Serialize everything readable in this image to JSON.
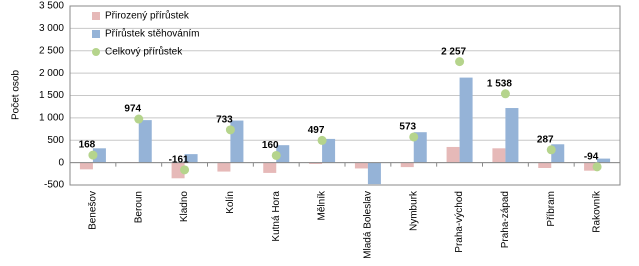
{
  "chart_data": {
    "type": "bar",
    "y_label": "Počet osob",
    "categories": [
      "Benešov",
      "Beroun",
      "Kladno",
      "Kolín",
      "Kutná Hora",
      "Mělník",
      "Mladá Boleslav",
      "Nymburk",
      "Praha-východ",
      "Praha-západ",
      "Příbram",
      "Rakovník"
    ],
    "series": [
      {
        "name": "Přirozený přírůstek",
        "color": "#e6b9b8",
        "mark": "bar",
        "values": [
          -150,
          10,
          -350,
          -200,
          -230,
          -30,
          -130,
          -100,
          350,
          320,
          -120,
          -180
        ]
      },
      {
        "name": "Přírůstek stěhováním",
        "color": "#95b3d7",
        "mark": "bar",
        "values": [
          320,
          950,
          190,
          940,
          390,
          530,
          -480,
          680,
          1900,
          1220,
          410,
          90
        ]
      },
      {
        "name": "Celkový přírůstek",
        "color": "#b5d48c",
        "mark": "point",
        "values": [
          168,
          974,
          -161,
          733,
          160,
          497,
          null,
          573,
          2257,
          1538,
          287,
          -94
        ],
        "value_labels": [
          null,
          null,
          null,
          null,
          null,
          null,
          null,
          null,
          "2 257",
          "1 538",
          null,
          null
        ]
      }
    ],
    "ylim": [
      -500,
      3500
    ],
    "yticks": [
      -500,
      0,
      500,
      {
        "value": 1000,
        "label": "1 000"
      },
      {
        "value": 1500,
        "label": "1 500"
      },
      {
        "value": 2000,
        "label": "2 000"
      },
      {
        "value": 2500,
        "label": "2 500"
      },
      {
        "value": 3000,
        "label": "3 000"
      },
      {
        "value": 3500,
        "label": "3 500"
      }
    ],
    "grid": true,
    "legend": "top-left"
  }
}
